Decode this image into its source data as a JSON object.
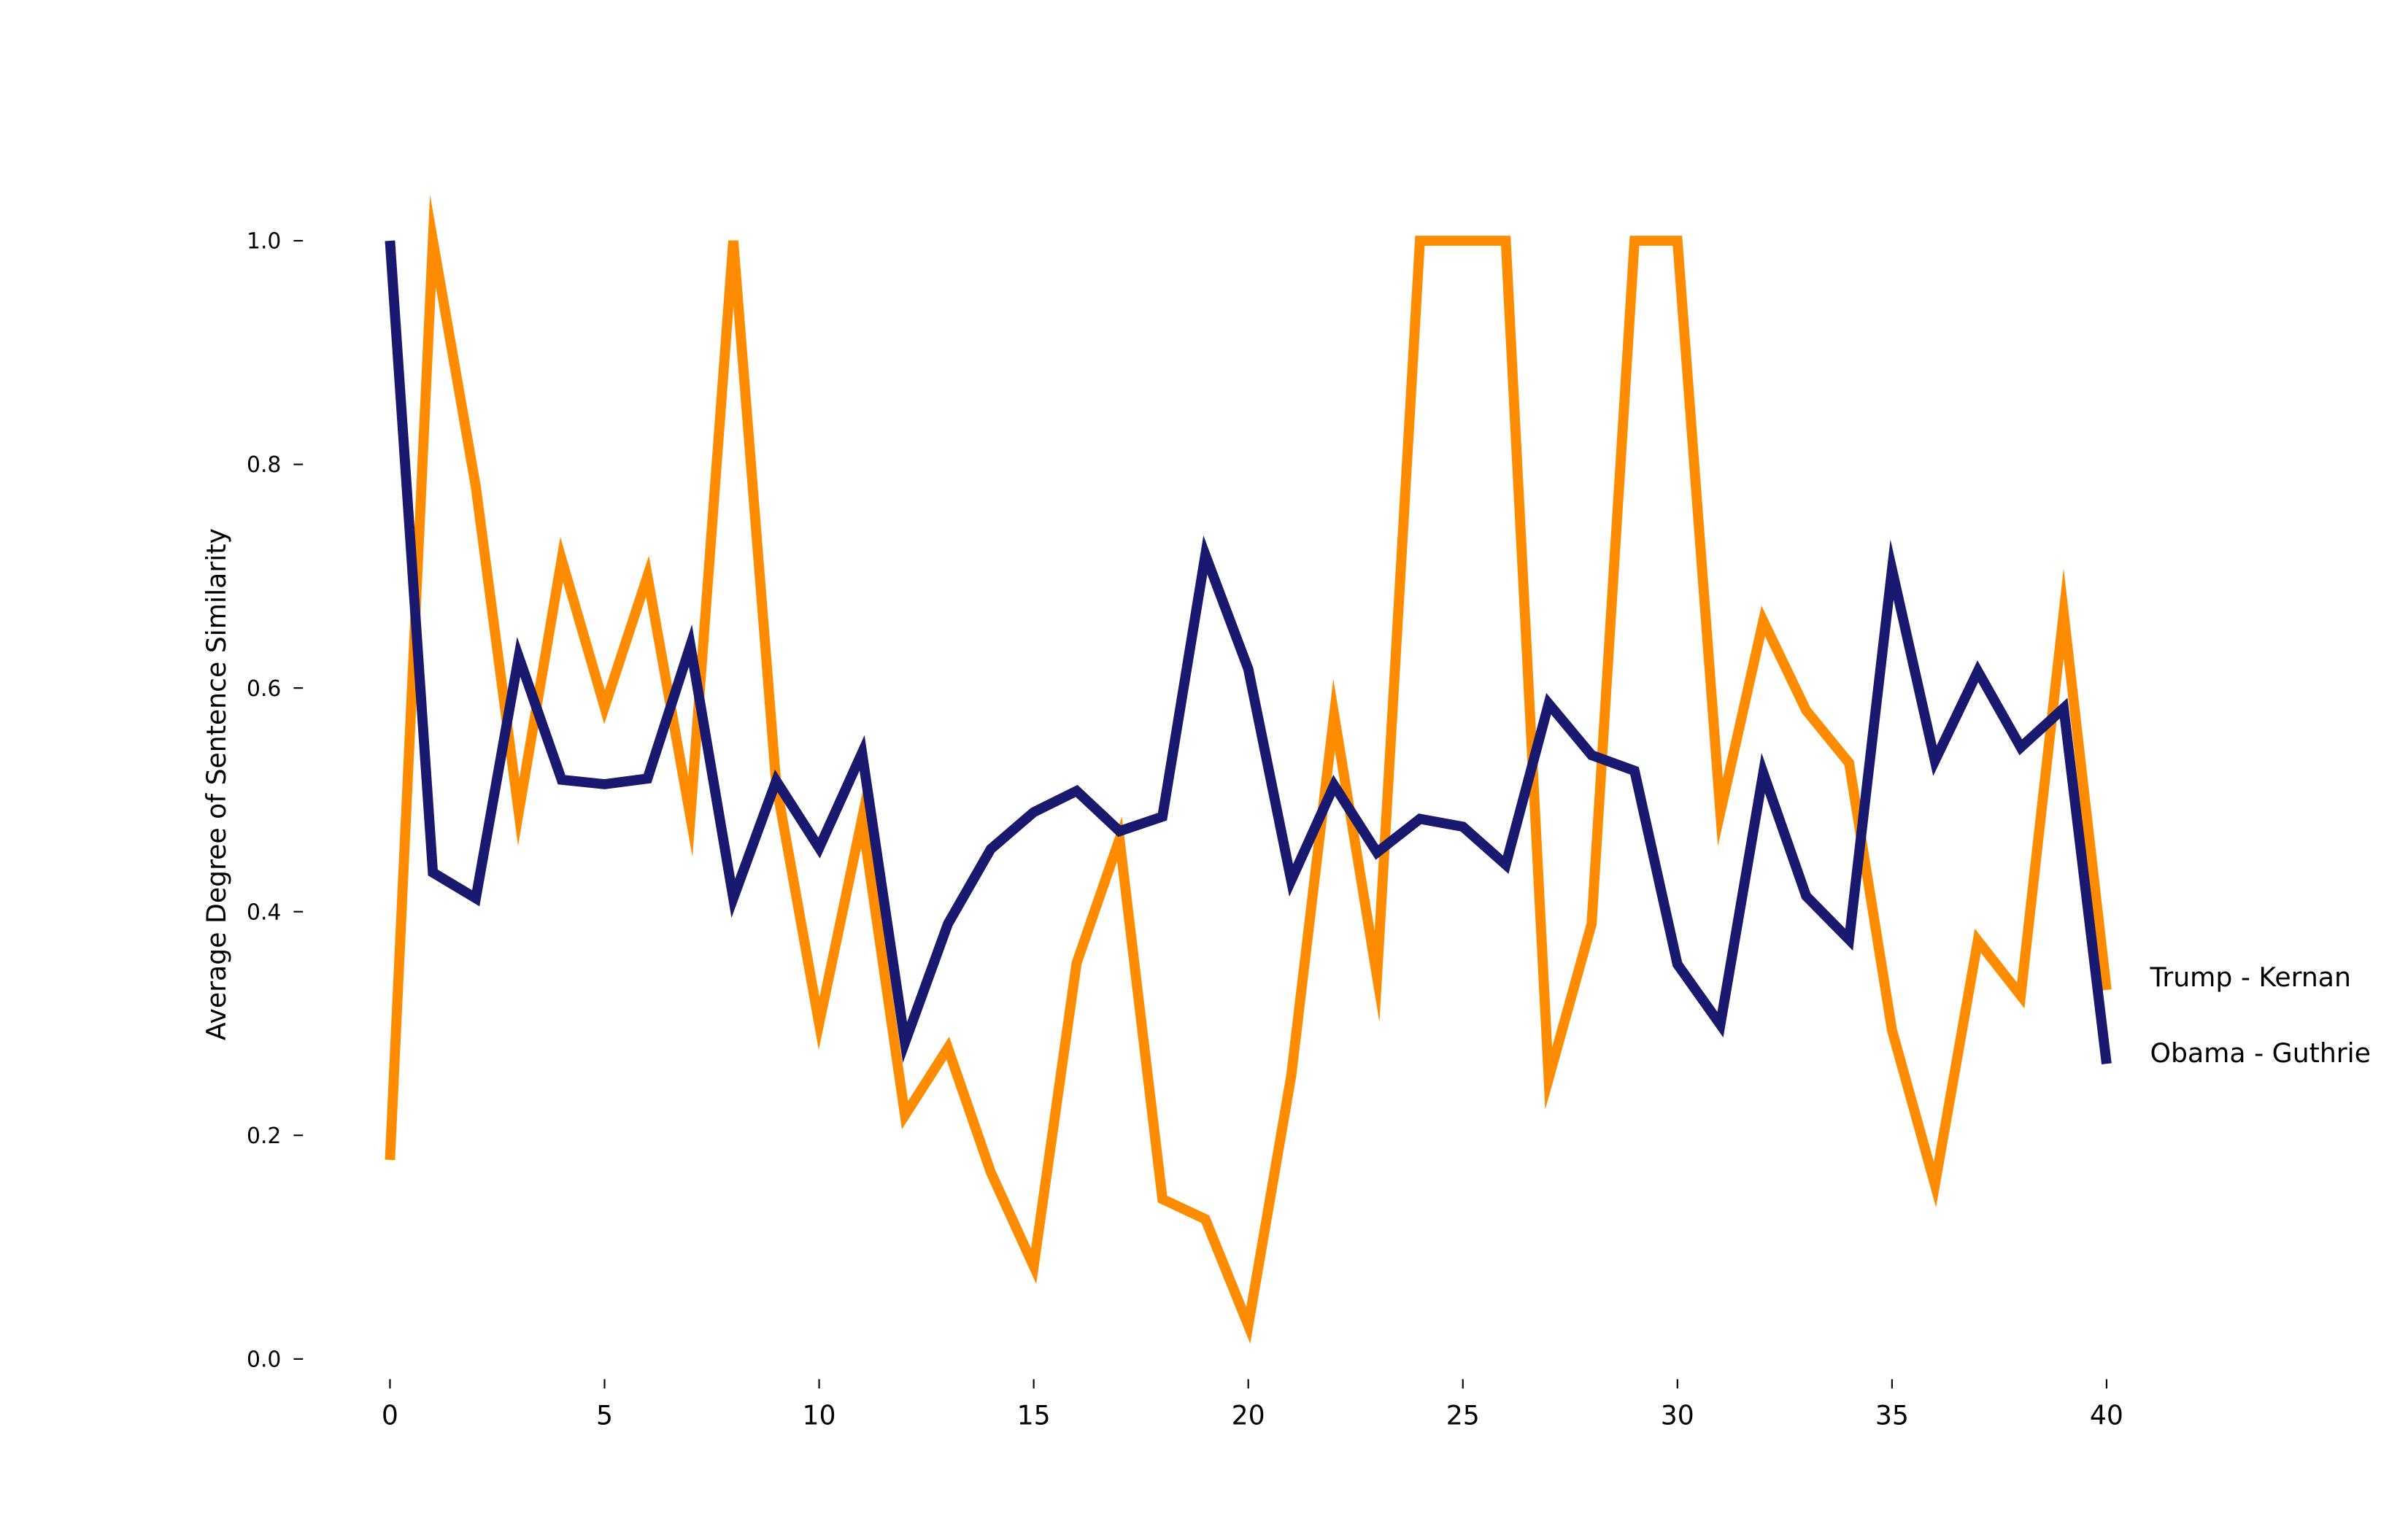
{
  "chart_data": {
    "type": "line",
    "title": "",
    "xlabel": "",
    "ylabel": "Average Degree of Sentence Similarity",
    "xlim": [
      0,
      40
    ],
    "ylim": [
      0,
      1.0
    ],
    "grid": false,
    "x_ticks": [
      "0",
      "5",
      "10",
      "15",
      "20",
      "25",
      "30",
      "35",
      "40"
    ],
    "y_ticks": [
      "0.0",
      "0.2",
      "0.4",
      "0.6",
      "0.8",
      "1.0"
    ],
    "legend_placement": "right, labels at line ends",
    "x": [
      0,
      1,
      2,
      3,
      4,
      5,
      6,
      7,
      8,
      9,
      10,
      11,
      12,
      13,
      14,
      15,
      16,
      17,
      18,
      19,
      20,
      21,
      22,
      23,
      24,
      25,
      26,
      27,
      28,
      29,
      30,
      31,
      32,
      33,
      34,
      35,
      36,
      37,
      38,
      39,
      40
    ],
    "series": [
      {
        "name": "Trump - Kernan",
        "color": "#ff8c00",
        "values": [
          0.178,
          1.0,
          0.78,
          0.489,
          0.715,
          0.583,
          0.7,
          0.485,
          1.0,
          0.514,
          0.3,
          0.483,
          0.218,
          0.278,
          0.167,
          0.083,
          0.354,
          0.465,
          0.143,
          0.125,
          0.03,
          0.253,
          0.576,
          0.342,
          1.0,
          1.0,
          1.0,
          0.251,
          0.389,
          1.0,
          1.0,
          0.489,
          0.66,
          0.58,
          0.533,
          0.294,
          0.156,
          0.374,
          0.325,
          0.667,
          0.33
        ]
      },
      {
        "name": "Obama - Guthrie",
        "color": "#191970",
        "values": [
          1.0,
          0.435,
          0.412,
          0.628,
          0.518,
          0.514,
          0.519,
          0.638,
          0.412,
          0.517,
          0.457,
          0.542,
          0.283,
          0.389,
          0.456,
          0.489,
          0.508,
          0.472,
          0.485,
          0.719,
          0.617,
          0.428,
          0.513,
          0.453,
          0.483,
          0.476,
          0.442,
          0.586,
          0.54,
          0.526,
          0.353,
          0.299,
          0.524,
          0.414,
          0.375,
          0.706,
          0.535,
          0.615,
          0.547,
          0.582,
          0.264
        ]
      }
    ]
  }
}
